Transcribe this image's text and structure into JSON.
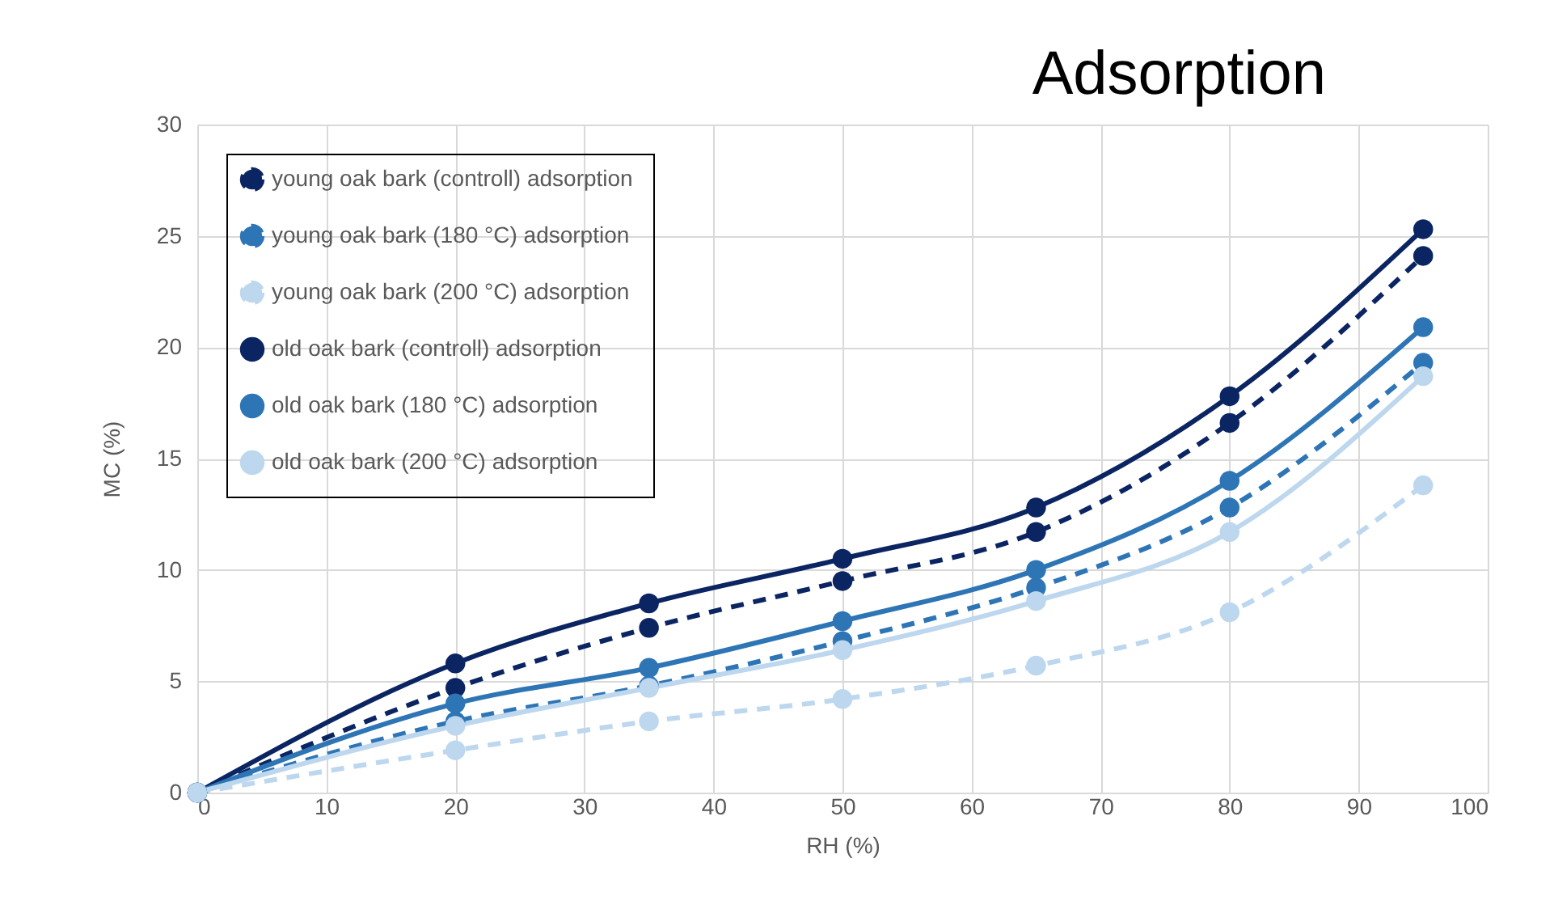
{
  "chart_data": {
    "type": "line",
    "title": "Adsorption",
    "xlabel": "RH (%)",
    "ylabel": "MC (%)",
    "x": [
      0,
      20,
      35,
      50,
      65,
      80,
      95
    ],
    "series": [
      {
        "name": "young  oak bark (controll) adsorption",
        "color": "#0b2563",
        "line_style": "dashed",
        "values": [
          0,
          4.7,
          7.4,
          9.5,
          11.7,
          16.6,
          24.1
        ]
      },
      {
        "name": "young  oak bark (180 °C) adsorption",
        "color": "#2e75b6",
        "line_style": "dashed",
        "values": [
          0,
          3.2,
          4.8,
          6.8,
          9.2,
          12.8,
          19.3
        ]
      },
      {
        "name": "young  oak bark (200 °C) adsorption",
        "color": "#bdd7ee",
        "line_style": "dashed",
        "values": [
          0,
          1.9,
          3.2,
          4.2,
          5.7,
          8.1,
          13.8
        ]
      },
      {
        "name": "old  oak bark (controll) adsorption",
        "color": "#0b2563",
        "line_style": "solid",
        "values": [
          0,
          5.8,
          8.5,
          10.5,
          12.8,
          17.8,
          25.3
        ]
      },
      {
        "name": "old  oak bark (180 °C) adsorption",
        "color": "#2e75b6",
        "line_style": "solid",
        "values": [
          0,
          4.0,
          5.6,
          7.7,
          10.0,
          14.0,
          20.9
        ]
      },
      {
        "name": "old  oak bark (200 °C) adsorption",
        "color": "#bdd7ee",
        "line_style": "solid",
        "values": [
          0,
          3.0,
          4.7,
          6.4,
          8.6,
          11.7,
          18.7
        ]
      }
    ],
    "xlim": [
      0,
      100
    ],
    "xticks": [
      0,
      10,
      20,
      30,
      40,
      50,
      60,
      70,
      80,
      90,
      100
    ],
    "ylim": [
      0,
      30
    ],
    "yticks": [
      0,
      5,
      10,
      15,
      20,
      25,
      30
    ],
    "grid": true,
    "legend": "top left",
    "marker": "circle"
  }
}
